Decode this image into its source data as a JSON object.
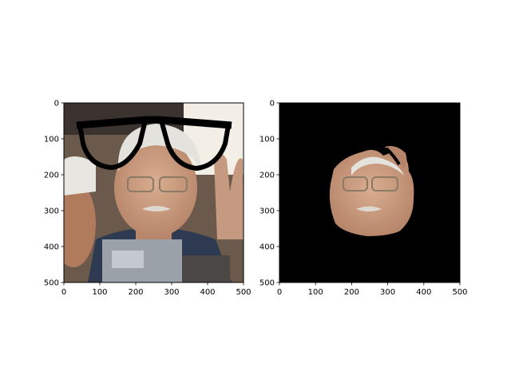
{
  "figure": {
    "background": "#ffffff",
    "axis_color": "#000000"
  },
  "chart_data": [
    {
      "type": "image",
      "panel": "left",
      "content": "photo of a man wearing glasses with an overlaid cartoon eyeglasses drawing near the top",
      "xlim": [
        0,
        500
      ],
      "ylim": [
        500,
        0
      ],
      "xticks": [
        0,
        100,
        200,
        300,
        400,
        500
      ],
      "yticks": [
        0,
        100,
        200,
        300,
        400,
        500
      ],
      "xticklabels": [
        "0",
        "100",
        "200",
        "300",
        "400",
        "500"
      ],
      "yticklabels": [
        "0",
        "100",
        "200",
        "300",
        "400",
        "500"
      ],
      "overlay": {
        "shape": "eyeglasses",
        "color": "#000000",
        "x_range": [
          40,
          460
        ],
        "y_range": [
          45,
          180
        ]
      },
      "colors": {
        "background_top": "#f3efe6",
        "skin": "#c99c80",
        "hair": "#e4e2dc",
        "suit": "#2e3a52",
        "camera": "#9ba1a8"
      }
    },
    {
      "type": "image",
      "panel": "right",
      "content": "segmented face region (skin mask) on a black background",
      "xlim": [
        0,
        500
      ],
      "ylim": [
        500,
        0
      ],
      "xticks": [
        0,
        100,
        200,
        300,
        400,
        500
      ],
      "yticks": [
        0,
        100,
        200,
        300,
        400,
        500
      ],
      "xticklabels": [
        "0",
        "100",
        "200",
        "300",
        "400",
        "500"
      ],
      "yticklabels": [
        "0",
        "100",
        "200",
        "300",
        "400",
        "500"
      ],
      "mask_extent": {
        "x": [
          140,
          360
        ],
        "y": [
          115,
          370
        ]
      },
      "colors": {
        "background": "#000000",
        "skin": "#c99c80",
        "hair": "#e4e2dc"
      }
    }
  ]
}
